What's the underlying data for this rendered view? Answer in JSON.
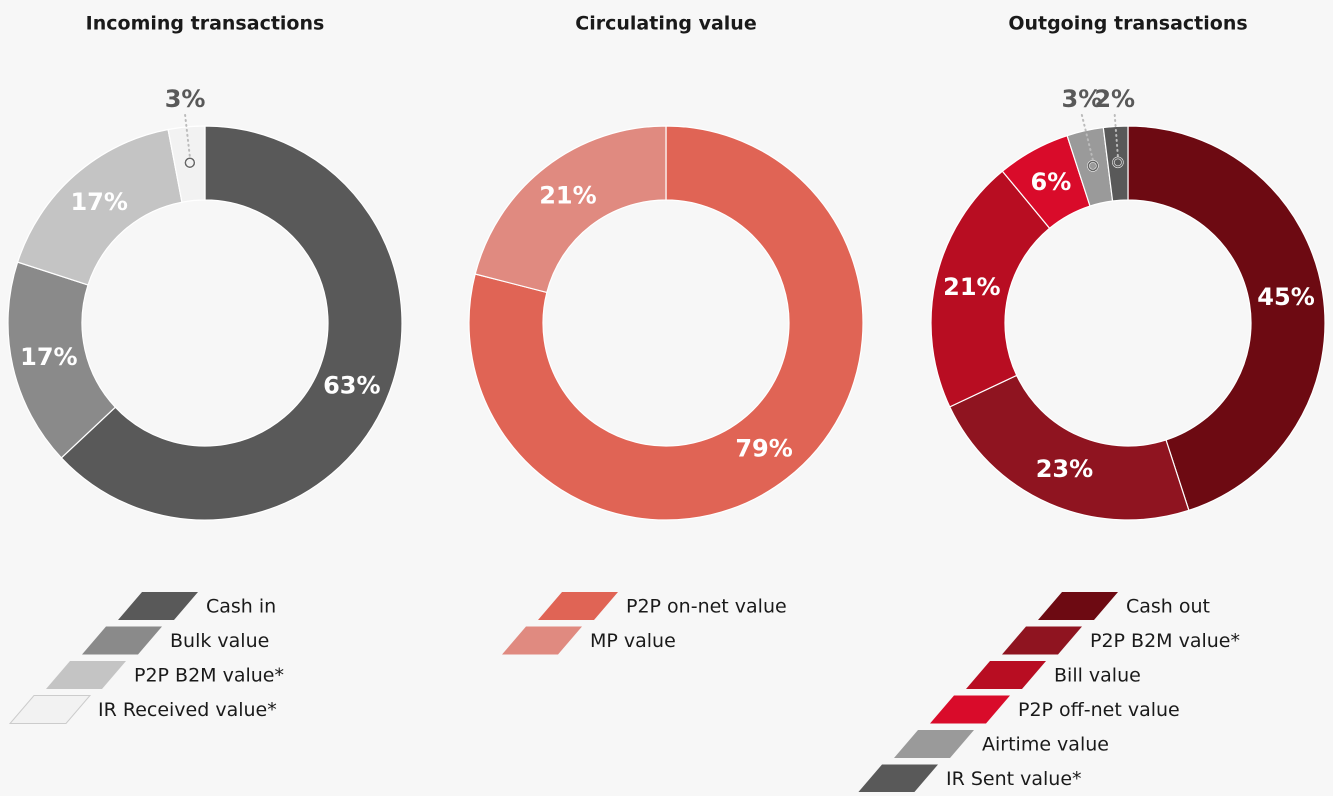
{
  "chart_data": [
    {
      "type": "pie",
      "title": "Incoming transactions",
      "categories": [
        "Cash in",
        "Bulk value",
        "P2P B2M value*",
        "IR Received value*"
      ],
      "values": [
        63,
        17,
        17,
        3
      ],
      "value_labels": [
        "63%",
        "17%",
        "17%",
        "3%"
      ],
      "colors": [
        "#595959",
        "#8a8a8a",
        "#c4c4c4",
        "#f2f2f2"
      ]
    },
    {
      "type": "pie",
      "title": "Circulating value",
      "categories": [
        "P2P on-net value",
        "MP value"
      ],
      "values": [
        79,
        21
      ],
      "value_labels": [
        "79%",
        "21%"
      ],
      "colors": [
        "#e06455",
        "#e08a80"
      ]
    },
    {
      "type": "pie",
      "title": "Outgoing transactions",
      "categories": [
        "Cash out",
        "P2P B2M value*",
        "Bill value",
        "P2P off-net value",
        "Airtime value",
        "IR Sent value*"
      ],
      "values": [
        45,
        23,
        21,
        6,
        3,
        2
      ],
      "value_labels": [
        "45%",
        "23%",
        "21%",
        "6%",
        "3%",
        "2%"
      ],
      "colors": [
        "#6d0a12",
        "#8f1420",
        "#b80d22",
        "#d90b2a",
        "#9a9a9a",
        "#595959"
      ]
    }
  ]
}
